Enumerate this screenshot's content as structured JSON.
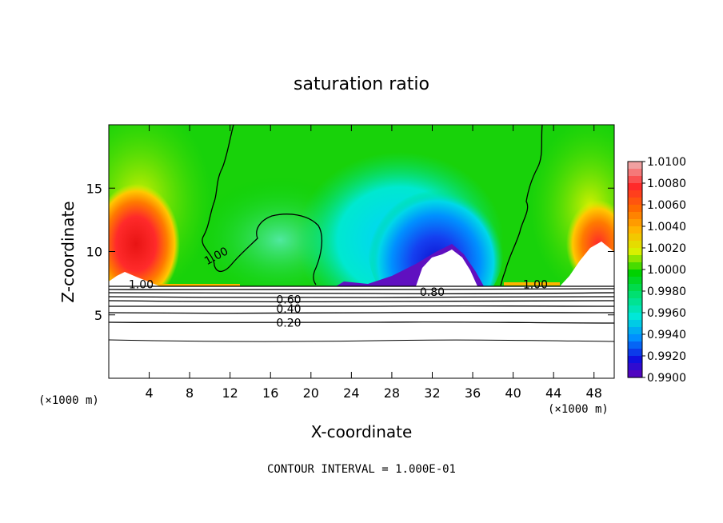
{
  "chart_data": {
    "type": "heatmap",
    "title": "saturation ratio",
    "xlabel": "X-coordinate",
    "ylabel": "Z-coordinate",
    "x_unit": "(×1000 m)",
    "x_unit_right": "(×1000 m)",
    "xlim": [
      0,
      50
    ],
    "ylim": [
      0,
      20
    ],
    "x_ticks": [
      4,
      8,
      12,
      16,
      20,
      24,
      28,
      32,
      36,
      40,
      44,
      48
    ],
    "y_ticks": [
      5,
      10,
      15
    ],
    "footer": "CONTOUR INTERVAL = 1.000E-01",
    "colorbar": {
      "ticks": [
        "1.0100",
        "1.0080",
        "1.0060",
        "1.0040",
        "1.0020",
        "1.0000",
        "0.9980",
        "0.9960",
        "0.9940",
        "0.9920",
        "0.9900"
      ],
      "colors": [
        "#f0a0a0",
        "#ff2a2a",
        "#ff6a00",
        "#ffb400",
        "#d8f000",
        "#00d200",
        "#00e070",
        "#00e8d8",
        "#0090ff",
        "#1010e0",
        "#7000b0"
      ]
    },
    "contour_labels": [
      {
        "text": "1.00",
        "x": 10.8,
        "y": 9.7
      },
      {
        "text": "1.00",
        "x": 3.2,
        "y": 7.4
      },
      {
        "text": "1.00",
        "x": 42.2,
        "y": 7.4
      },
      {
        "text": "0.80",
        "x": 32.0,
        "y": 6.8
      },
      {
        "text": "0.60",
        "x": 17.8,
        "y": 6.2
      },
      {
        "text": "0.40",
        "x": 17.8,
        "y": 5.5
      },
      {
        "text": "0.20",
        "x": 17.8,
        "y": 4.4
      }
    ]
  }
}
